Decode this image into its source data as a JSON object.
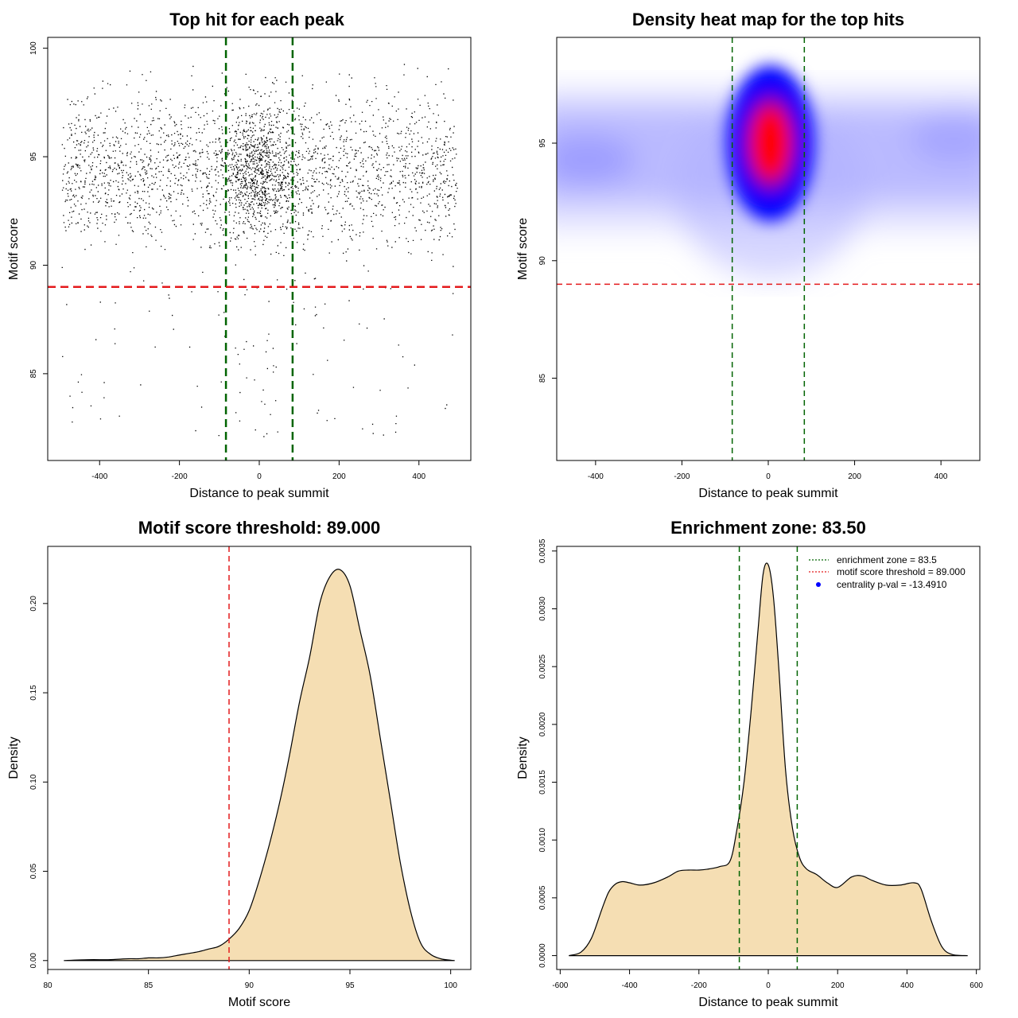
{
  "chart_data": [
    {
      "type": "scatter",
      "title": "Top hit for each peak",
      "xlabel": "Distance to peak summit",
      "ylabel": "Motif score",
      "xlim": [
        -530,
        530
      ],
      "ylim": [
        81,
        100.5
      ],
      "xticks": [
        -400,
        -200,
        0,
        200,
        400
      ],
      "yticks": [
        85,
        90,
        95,
        100
      ],
      "vlines": [
        -83.5,
        83.5
      ],
      "hline": 89.0,
      "colors": {
        "points": "#000000",
        "vlines": "#006400",
        "hline": "#e41a1c"
      },
      "points_summary": {
        "n_points_approx": 6000,
        "x_range": [
          -500,
          500
        ],
        "y_mode": 94.5,
        "y_sd": 1.8,
        "center_concentration": "points cluster densely near distance 0 between motif score 91 and 97"
      }
    },
    {
      "type": "heatmap",
      "title": "Density heat map for the top hits",
      "xlabel": "Distance to peak summit",
      "ylabel": "Motif score",
      "xlim": [
        -490,
        490
      ],
      "ylim": [
        81.5,
        99.5
      ],
      "xticks": [
        -400,
        -200,
        0,
        200,
        400
      ],
      "yticks": [
        85,
        90,
        95
      ],
      "vlines": [
        -83.5,
        83.5
      ],
      "hline": 89.0,
      "colors": {
        "low": "#ffffff",
        "mid": "#0000ff",
        "high": "#ff0000",
        "vlines": "#006400",
        "hline": "#e41a1c"
      },
      "density_summary": {
        "peak_x": 5,
        "peak_y": 95.0,
        "background_band_y": [
          92.5,
          96.5
        ]
      }
    },
    {
      "type": "area",
      "title": "Motif score threshold: 89.000",
      "xlabel": "Motif score",
      "ylabel": "Density",
      "xlim": [
        80,
        101
      ],
      "ylim": [
        -0.005,
        0.232
      ],
      "xticks": [
        80,
        85,
        90,
        95,
        100
      ],
      "yticks": [
        0.0,
        0.05,
        0.1,
        0.15,
        0.2
      ],
      "ytick_labels": [
        "0.00",
        "0.05",
        "0.10",
        "0.15",
        "0.20"
      ],
      "vline": 89.0,
      "colors": {
        "fill": "#f5deb3",
        "line": "#000000",
        "vline": "#e41a1c"
      },
      "x": [
        80.8,
        82,
        83,
        84,
        84.5,
        85,
        85.5,
        86,
        86.5,
        87,
        87.5,
        88,
        88.5,
        89,
        89.5,
        90,
        90.5,
        91,
        91.5,
        92,
        92.5,
        93,
        93.5,
        94,
        94.5,
        95,
        95.5,
        96,
        96.5,
        97,
        97.5,
        98,
        98.5,
        99,
        99.5,
        100,
        100.2
      ],
      "values": [
        0.0,
        0.0005,
        0.0005,
        0.001,
        0.001,
        0.0015,
        0.0015,
        0.002,
        0.003,
        0.004,
        0.005,
        0.0065,
        0.008,
        0.012,
        0.018,
        0.028,
        0.045,
        0.065,
        0.088,
        0.115,
        0.145,
        0.17,
        0.2,
        0.215,
        0.219,
        0.21,
        0.185,
        0.16,
        0.125,
        0.09,
        0.055,
        0.028,
        0.01,
        0.0035,
        0.001,
        0.0002,
        0.0
      ]
    },
    {
      "type": "area",
      "title": "Enrichment zone: 83.50",
      "xlabel": "Distance to peak summit",
      "ylabel": "Density",
      "xlim": [
        -610,
        610
      ],
      "ylim": [
        -0.00012,
        0.00354
      ],
      "xticks": [
        -600,
        -400,
        -200,
        0,
        200,
        400,
        600
      ],
      "yticks": [
        0.0,
        0.0005,
        0.001,
        0.0015,
        0.002,
        0.0025,
        0.003,
        0.0035
      ],
      "ytick_labels": [
        "0.0000",
        "0.0005",
        "0.0010",
        "0.0015",
        "0.0020",
        "0.0025",
        "0.0030",
        "0.0035"
      ],
      "vlines": [
        -83.5,
        83.5
      ],
      "colors": {
        "fill": "#f5deb3",
        "line": "#000000",
        "vlines": "#006400",
        "legend_zone": "#006400",
        "legend_threshold": "#e41a1c",
        "legend_pval": "#0000ff"
      },
      "x": [
        -575,
        -540,
        -510,
        -480,
        -460,
        -440,
        -420,
        -400,
        -370,
        -330,
        -290,
        -260,
        -230,
        -200,
        -170,
        -140,
        -110,
        -90,
        -70,
        -50,
        -30,
        -15,
        0,
        15,
        30,
        50,
        70,
        90,
        110,
        140,
        170,
        200,
        240,
        270,
        300,
        340,
        380,
        420,
        440,
        470,
        500,
        530,
        575
      ],
      "values": [
        0.0,
        3e-05,
        0.00015,
        0.0004,
        0.00055,
        0.00062,
        0.00064,
        0.00063,
        0.00061,
        0.00063,
        0.00068,
        0.00073,
        0.00074,
        0.00074,
        0.00075,
        0.00077,
        0.00082,
        0.0011,
        0.0015,
        0.0021,
        0.0028,
        0.0033,
        0.00338,
        0.0031,
        0.0025,
        0.0016,
        0.0011,
        0.00085,
        0.00075,
        0.0007,
        0.00063,
        0.00059,
        0.00068,
        0.00069,
        0.00065,
        0.00061,
        0.00061,
        0.00063,
        0.00058,
        0.0003,
        8e-05,
        1e-05,
        0.0
      ]
    }
  ],
  "legend": {
    "items": [
      {
        "label": "enrichment zone = 83.5",
        "style": "dotted",
        "color": "#006400"
      },
      {
        "label": "motif score threshold = 89.000",
        "style": "dotted",
        "color": "#e41a1c"
      },
      {
        "label": "centrality p-val = -13.4910",
        "style": "dot",
        "color": "#0000ff"
      }
    ]
  }
}
